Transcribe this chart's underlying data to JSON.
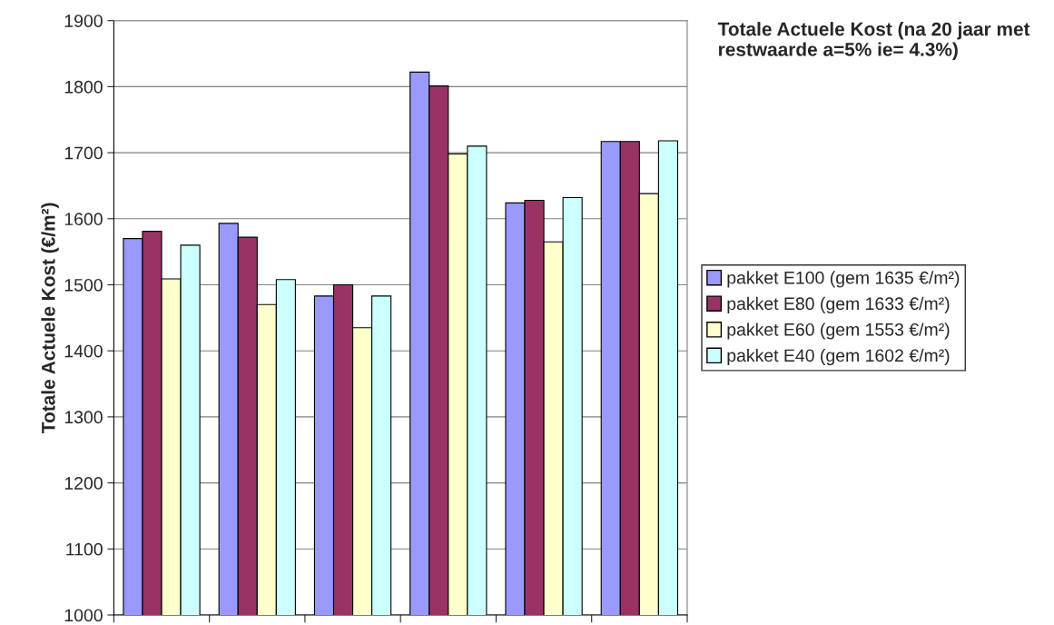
{
  "chart_data": {
    "type": "bar",
    "title": "Totale Actuele Kost (na 20 jaar met restwaarde a=5% ie= 4.3%)",
    "ylabel": "Totale Actuele Kost (€/m²)",
    "categories": [
      null,
      null,
      null,
      null,
      null,
      null
    ],
    "series": [
      {
        "name": "pakket E100 (gem 1635 €/m²)",
        "color": "#9999ff",
        "values": [
          1570,
          1593,
          1483,
          1822,
          1624,
          1717
        ]
      },
      {
        "name": "pakket E80 (gem 1633 €/m²)",
        "color": "#993366",
        "values": [
          1581,
          1572,
          1500,
          1801,
          1628,
          1717
        ]
      },
      {
        "name": "pakket E60 (gem 1553 €/m²)",
        "color": "#ffffcc",
        "values": [
          1509,
          1470,
          1435,
          1698,
          1565,
          1638
        ]
      },
      {
        "name": "pakket E40 (gem 1602 €/m²)",
        "color": "#ccffff",
        "values": [
          1560,
          1508,
          1483,
          1710,
          1632,
          1718
        ]
      }
    ],
    "ylim": [
      1000,
      1900
    ],
    "yticks": [
      1000,
      1100,
      1200,
      1300,
      1400,
      1500,
      1600,
      1700,
      1800,
      1900
    ],
    "grid": "y",
    "legend": "right"
  }
}
